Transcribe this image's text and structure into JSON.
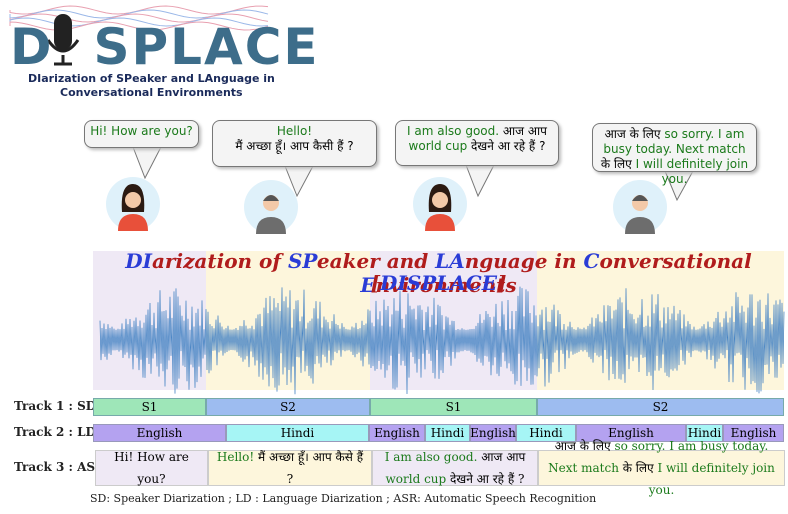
{
  "logo": {
    "left": "D",
    "right": "SPLACE",
    "subtitle": [
      "DIarization of SPeaker and LAnguage in",
      "Conversational Environments"
    ]
  },
  "bubbles": [
    {
      "parts": [
        "Hi! How are you?"
      ]
    },
    {
      "parts": [
        "Hello!",
        "मैं अच्छा हूँ। आप कैसी हैं ?"
      ]
    },
    {
      "parts": [
        "I am also good.",
        " आज आप ",
        "world cup",
        " देखने आ रहे हैं ?"
      ]
    },
    {
      "parts": [
        "आज के लिए ",
        "so sorry. I am busy today. Next match",
        " के लिए ",
        "I will definitely join you."
      ]
    }
  ],
  "title": [
    "DIarization of SPeaker and LAnguage in Conversational Environments",
    "[DISPLACE]"
  ],
  "tracks": [
    {
      "label": "Track 1 : SD",
      "segments": [
        "S1",
        "S2",
        "S1",
        "S2"
      ]
    },
    {
      "label": "Track 2 : LD",
      "segments": [
        "English",
        "Hindi",
        "English",
        "Hindi",
        "English",
        "Hindi",
        "English",
        "Hindi",
        "English"
      ]
    },
    {
      "label": "Track 3 : ASR",
      "segments": [
        [
          "Hi! How are you?"
        ],
        [
          "Hello!",
          " मैं अच्छा हूँ। आप कैसे हैं ?"
        ],
        [
          "I am also good.",
          "  आज आप ",
          "world cup",
          " देखने आ रहे हैं ?"
        ],
        [
          "आज के लिए ",
          "so sorry. I am busy today. Next match",
          " के लिए ",
          "I will definitely join you."
        ]
      ]
    }
  ],
  "footnote": "SD: Speaker Diarization ; LD : Language Diarization ; ASR: Automatic Speech Recognition"
}
